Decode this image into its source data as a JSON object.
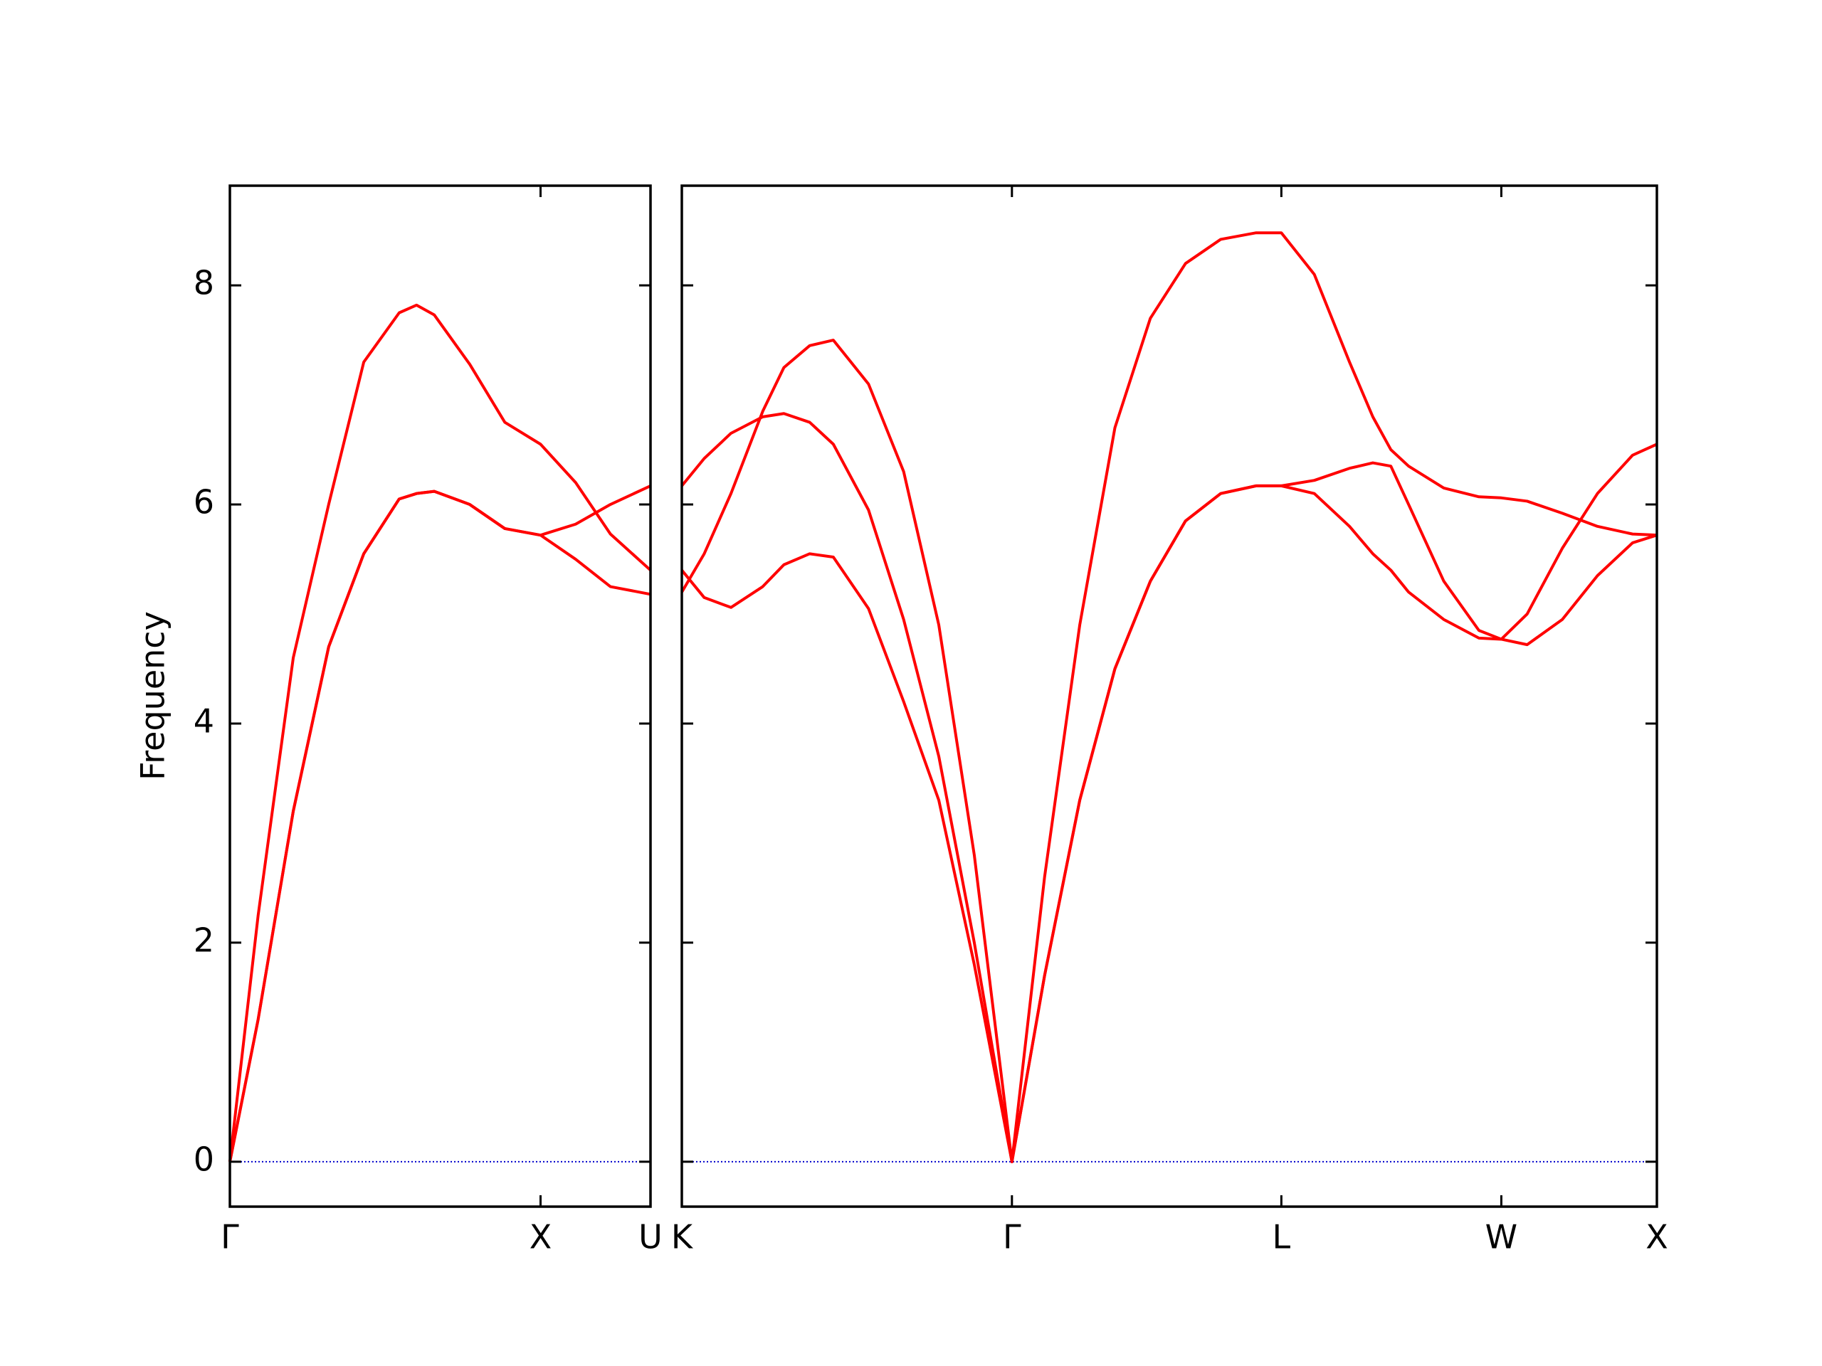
{
  "chart_data": [
    {
      "type": "line",
      "ylabel": "Frequency",
      "x": [
        0,
        0.091,
        0.204,
        0.318,
        0.431,
        0.545,
        0.601,
        0.658,
        0.772,
        0.885,
        1.0,
        1.113,
        1.225,
        1.354
      ],
      "series": [
        {
          "color": "#ff0000",
          "values": [
            0,
            2.25,
            4.6,
            6.0,
            7.3,
            7.75,
            7.82,
            7.73,
            7.28,
            6.75,
            6.55,
            6.2,
            5.73,
            5.4
          ]
        },
        {
          "color": "#ff0000",
          "values": [
            0,
            1.3,
            3.2,
            4.7,
            5.55,
            6.05,
            6.1,
            6.12,
            6.0,
            5.78,
            5.72,
            5.82,
            6.0,
            6.17
          ]
        },
        {
          "color": "#ff0000",
          "values": [
            0,
            1.3,
            3.2,
            4.7,
            5.55,
            6.05,
            6.1,
            6.12,
            6.0,
            5.78,
            5.72,
            5.5,
            5.25,
            5.18
          ]
        }
      ],
      "xlim": [
        0,
        1.354
      ],
      "xticks": [
        {
          "value": 0,
          "label": "Γ"
        },
        {
          "value": 1.0,
          "label": "X"
        },
        {
          "value": 1.354,
          "label": "U"
        }
      ],
      "ylim": [
        -0.41,
        8.91
      ],
      "yticks": [
        0,
        2,
        4,
        6,
        8
      ],
      "zero_line": true,
      "zero_line_color": "#0000cc"
    },
    {
      "type": "line",
      "x": [
        1.354,
        1.426,
        1.512,
        1.614,
        1.682,
        1.765,
        1.841,
        1.954,
        2.067,
        2.18,
        2.294,
        2.415,
        2.52,
        2.633,
        2.746,
        2.86,
        2.973,
        3.086,
        3.2,
        3.281,
        3.387,
        3.5,
        3.575,
        3.633,
        3.69,
        3.803,
        3.916,
        3.988,
        4.071,
        4.184,
        4.297,
        4.41,
        4.488
      ],
      "series": [
        {
          "color": "#ff0000",
          "values": [
            5.2,
            5.55,
            6.1,
            6.85,
            7.25,
            7.45,
            7.5,
            7.1,
            6.3,
            4.9,
            2.8,
            0,
            2.6,
            4.9,
            6.7,
            7.7,
            8.2,
            8.42,
            8.48,
            8.48,
            8.1,
            7.3,
            6.8,
            6.5,
            6.35,
            6.15,
            6.07,
            6.06,
            6.03,
            5.92,
            5.8,
            5.73,
            5.72
          ]
        },
        {
          "color": "#ff0000",
          "values": [
            6.17,
            6.42,
            6.65,
            6.8,
            6.83,
            6.75,
            6.55,
            5.95,
            4.95,
            3.7,
            2.0,
            0,
            1.7,
            3.3,
            4.5,
            5.3,
            5.85,
            6.1,
            6.17,
            6.17,
            6.22,
            6.33,
            6.38,
            6.35,
            6.0,
            5.3,
            4.85,
            4.77,
            5.0,
            5.6,
            6.1,
            6.45,
            6.55
          ]
        },
        {
          "color": "#ff0000",
          "values": [
            5.4,
            5.15,
            5.06,
            5.25,
            5.45,
            5.55,
            5.52,
            5.05,
            4.2,
            3.3,
            1.8,
            0,
            1.7,
            3.3,
            4.5,
            5.3,
            5.85,
            6.1,
            6.17,
            6.17,
            6.1,
            5.8,
            5.55,
            5.4,
            5.2,
            4.95,
            4.78,
            4.77,
            4.72,
            4.95,
            5.35,
            5.65,
            5.72
          ]
        }
      ],
      "xlim": [
        1.354,
        4.488
      ],
      "xticks": [
        {
          "value": 1.354,
          "label": "K"
        },
        {
          "value": 2.415,
          "label": "Γ"
        },
        {
          "value": 3.281,
          "label": "L"
        },
        {
          "value": 3.988,
          "label": "W"
        },
        {
          "value": 4.488,
          "label": "X"
        }
      ],
      "ylim": [
        -0.41,
        8.91
      ],
      "zero_line": true,
      "zero_line_color": "#0000cc"
    }
  ]
}
